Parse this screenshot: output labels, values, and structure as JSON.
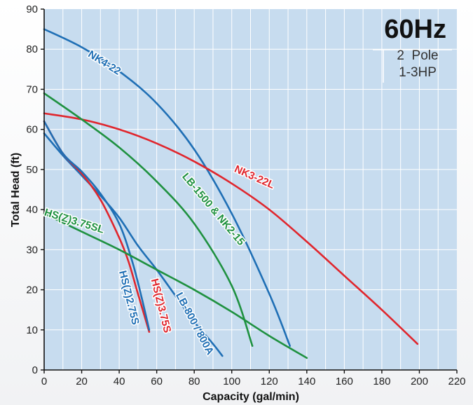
{
  "colors": {
    "background": "#c7dcef",
    "grid": "#ffffff",
    "blue": "#1f6fb5",
    "green": "#1f9140",
    "red": "#e0262d"
  },
  "info_box": {
    "frequency": "60Hz",
    "poles": "2  Pole",
    "power": "1-3HP"
  },
  "chart_data": {
    "type": "line",
    "xlabel": "Capacity (gal/min)",
    "ylabel": "Total Head (ft)",
    "xlim": [
      0,
      220
    ],
    "ylim": [
      0,
      90
    ],
    "xticks": [
      "0",
      "20",
      "40",
      "60",
      "80",
      "100",
      "120",
      "140",
      "160",
      "180",
      "200",
      "220"
    ],
    "yticks": [
      "0",
      "10",
      "20",
      "30",
      "40",
      "50",
      "60",
      "70",
      "80",
      "90"
    ],
    "grid": true,
    "series": [
      {
        "name": "NK4-22",
        "color": "blue",
        "points": [
          [
            0,
            85
          ],
          [
            20,
            80.5
          ],
          [
            40,
            74.5
          ],
          [
            60,
            66.5
          ],
          [
            80,
            55
          ],
          [
            100,
            39
          ],
          [
            120,
            19
          ],
          [
            131,
            6
          ]
        ]
      },
      {
        "name": "NK3-22L",
        "color": "red",
        "points": [
          [
            0,
            64
          ],
          [
            20,
            62.5
          ],
          [
            40,
            60
          ],
          [
            60,
            56.5
          ],
          [
            80,
            52
          ],
          [
            100,
            46.5
          ],
          [
            120,
            40
          ],
          [
            140,
            32
          ],
          [
            160,
            23.5
          ],
          [
            180,
            15
          ],
          [
            199,
            6.5
          ]
        ]
      },
      {
        "name": "LB-1500 & NK2-15",
        "color": "green",
        "points": [
          [
            0,
            69
          ],
          [
            20,
            62.5
          ],
          [
            40,
            55.5
          ],
          [
            60,
            47
          ],
          [
            80,
            36.5
          ],
          [
            100,
            21
          ],
          [
            111,
            6
          ]
        ]
      },
      {
        "name": "LB-800 / 800A",
        "color": "blue",
        "points": [
          [
            0,
            59
          ],
          [
            10,
            53.5
          ],
          [
            20,
            48.5
          ],
          [
            30,
            43.5
          ],
          [
            40,
            38
          ],
          [
            50,
            31
          ],
          [
            60,
            25
          ],
          [
            70,
            18.5
          ],
          [
            80,
            12
          ],
          [
            90,
            6.5
          ],
          [
            95,
            3.5
          ]
        ]
      },
      {
        "name": "HS(Z)3.75S",
        "color": "red",
        "points": [
          [
            0,
            62
          ],
          [
            10,
            54
          ],
          [
            20,
            49
          ],
          [
            30,
            42.5
          ],
          [
            40,
            33
          ],
          [
            45,
            27
          ],
          [
            50,
            19
          ],
          [
            56,
            9.5
          ]
        ]
      },
      {
        "name": "HS(Z)2.75S",
        "color": "blue",
        "points": [
          [
            0,
            62
          ],
          [
            10,
            54
          ],
          [
            20,
            49.5
          ],
          [
            30,
            44
          ],
          [
            40,
            36.5
          ],
          [
            47,
            27
          ],
          [
            52,
            18
          ],
          [
            56,
            10
          ]
        ]
      },
      {
        "name": "HS(Z)3.75SL",
        "color": "green",
        "points": [
          [
            0,
            39
          ],
          [
            20,
            34.5
          ],
          [
            40,
            30
          ],
          [
            60,
            25
          ],
          [
            80,
            20
          ],
          [
            100,
            14.5
          ],
          [
            120,
            8.5
          ],
          [
            140,
            3
          ]
        ]
      }
    ],
    "labels": [
      {
        "text": "NK4-22",
        "series": 0,
        "x": 32,
        "y": 76.5,
        "angle": 32,
        "color": "blue"
      },
      {
        "text": "NK3-22L",
        "series": 1,
        "x": 112,
        "y": 48,
        "angle": 24,
        "color": "red"
      },
      {
        "text": "LB-1500 & NK2-15",
        "series": 2,
        "x": 90,
        "y": 40,
        "angle": 50,
        "color": "green"
      },
      {
        "text": "HS(Z)3.75SL",
        "series": 6,
        "x": 16,
        "y": 37,
        "angle": 17,
        "color": "green"
      },
      {
        "text": "HS(Z)2.75S",
        "series": 5,
        "x": 45,
        "y": 18,
        "angle": 76,
        "color": "blue"
      },
      {
        "text": "HS(Z)3.75S",
        "series": 4,
        "x": 62,
        "y": 16,
        "angle": 76,
        "color": "red"
      },
      {
        "text": "LB-800 / 800A",
        "series": 3,
        "x": 80,
        "y": 11.5,
        "angle": 62,
        "color": "blue"
      }
    ]
  }
}
